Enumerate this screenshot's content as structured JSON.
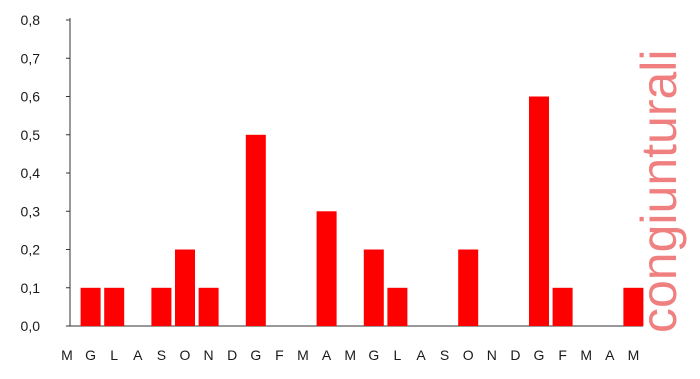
{
  "chart_data": {
    "type": "bar",
    "categories": [
      "M",
      "G",
      "L",
      "A",
      "S",
      "O",
      "N",
      "D",
      "G",
      "F",
      "M",
      "A",
      "M",
      "G",
      "L",
      "A",
      "S",
      "O",
      "N",
      "D",
      "G",
      "F",
      "M",
      "A",
      "M"
    ],
    "values": [
      0,
      0.1,
      0.1,
      0,
      0.1,
      0.2,
      0.1,
      0,
      0.5,
      0,
      0,
      0.3,
      0,
      0.2,
      0.1,
      0,
      0,
      0.2,
      0,
      0,
      0.6,
      0.1,
      0,
      0,
      0.1
    ],
    "yticks": [
      "0,0",
      "0,1",
      "0,2",
      "0,3",
      "0,4",
      "0,5",
      "0,6",
      "0,7",
      "0,8"
    ],
    "ylim": [
      0,
      0.8
    ],
    "title": "",
    "xlabel": "",
    "ylabel": "",
    "grid": false,
    "bar_color": "#ff0000"
  },
  "watermark": {
    "text": "congiunturali",
    "color": "#f08080"
  }
}
